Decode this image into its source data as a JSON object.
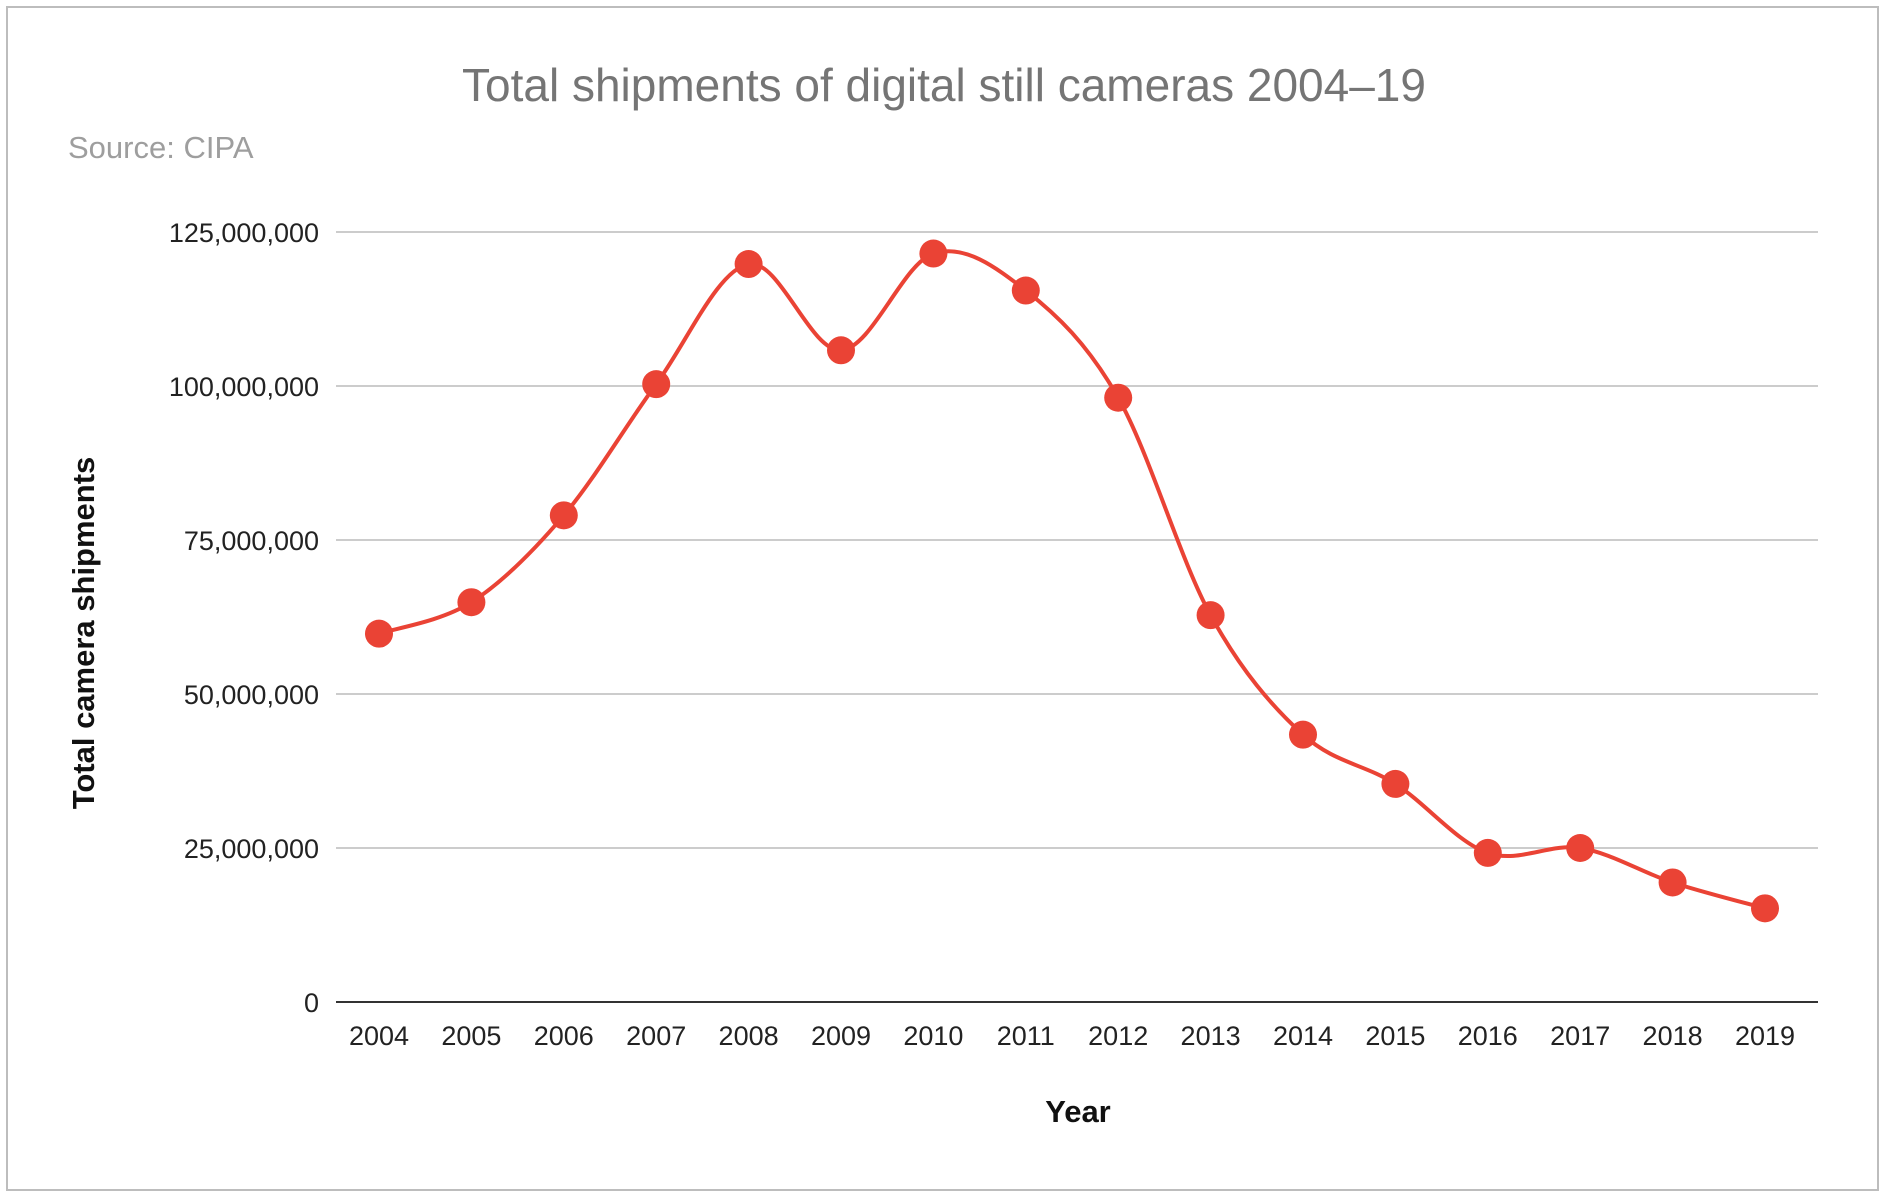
{
  "chart_data": {
    "type": "line",
    "title": "Total shipments of digital still cameras 2004–19",
    "subtitle": "Source: CIPA",
    "xlabel": "Year",
    "ylabel": "Total camera shipments",
    "categories": [
      "2004",
      "2005",
      "2006",
      "2007",
      "2008",
      "2009",
      "2010",
      "2011",
      "2012",
      "2013",
      "2014",
      "2015",
      "2016",
      "2017",
      "2018",
      "2019"
    ],
    "series": [
      {
        "values": [
          59800000,
          64900000,
          79000000,
          100300000,
          119800000,
          105800000,
          121500000,
          115500000,
          98100000,
          62800000,
          43400000,
          35400000,
          24200000,
          25000000,
          19400000,
          15200000
        ]
      }
    ],
    "ylim": [
      0,
      125000000
    ],
    "yticks": [
      {
        "value": 0,
        "label": "0"
      },
      {
        "value": 25000000,
        "label": "25,000,000"
      },
      {
        "value": 50000000,
        "label": "50,000,000"
      },
      {
        "value": 75000000,
        "label": "75,000,000"
      },
      {
        "value": 100000000,
        "label": "100,000,000"
      },
      {
        "value": 125000000,
        "label": "125,000,000"
      }
    ],
    "grid": true,
    "line_style": "smooth",
    "marker": "circle",
    "colors": {
      "series": "#ea4335",
      "grid": "#cccccc",
      "title": "#757575",
      "subtitle": "#9e9e9e"
    }
  }
}
